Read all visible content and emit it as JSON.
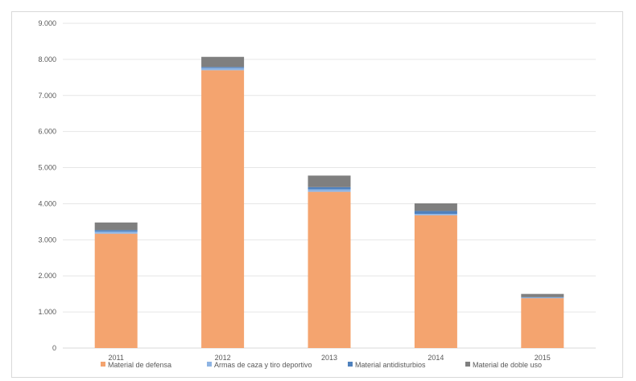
{
  "chart_data": {
    "type": "bar",
    "stacked": true,
    "title": "",
    "xlabel": "",
    "ylabel": "",
    "categories": [
      "2011",
      "2012",
      "2013",
      "2014",
      "2015"
    ],
    "ylim": [
      0,
      9000
    ],
    "yticks": [
      0,
      1000,
      2000,
      3000,
      4000,
      5000,
      6000,
      7000,
      8000,
      9000
    ],
    "ytick_labels": [
      "0",
      "1.000",
      "2.000",
      "3.000",
      "4.000",
      "5.000",
      "6.000",
      "7.000",
      "8.000",
      "9.000"
    ],
    "grid": true,
    "legend_position": "bottom",
    "series": [
      {
        "name": "Material de defensa",
        "color": "#F4A46F",
        "values": [
          3170,
          7700,
          4330,
          3680,
          1380
        ]
      },
      {
        "name": "Armas de caza y tiro deportivo",
        "color": "#8EB4E3",
        "values": [
          60,
          60,
          70,
          40,
          20
        ]
      },
      {
        "name": "Material antidisturbios",
        "color": "#4F81BD",
        "values": [
          40,
          30,
          60,
          80,
          10
        ]
      },
      {
        "name": "Material de doble uso",
        "color": "#7F7F7F",
        "values": [
          210,
          280,
          320,
          210,
          90
        ]
      }
    ]
  }
}
